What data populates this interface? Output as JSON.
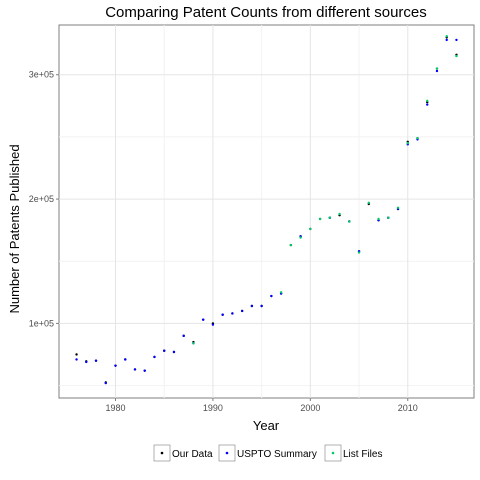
{
  "chart_data": {
    "type": "scatter",
    "title": "Comparing Patent Counts from different sources",
    "xlabel": "Year",
    "ylabel": "Number of Patents Published",
    "xlim": [
      1974.2,
      2016.8
    ],
    "ylim": [
      40000,
      340000
    ],
    "x_ticks": [
      1980,
      1990,
      2000,
      2010
    ],
    "x_tick_labels": [
      "1980",
      "1990",
      "2000",
      "2010"
    ],
    "y_ticks": [
      100000,
      200000,
      300000
    ],
    "y_tick_labels": [
      "1e+05",
      "2e+05",
      "3e+05"
    ],
    "grid": true,
    "legend_position": "bottom",
    "series": [
      {
        "name": "Our Data",
        "color": "#000000",
        "x": [
          1976,
          1977,
          1978,
          1979,
          1980,
          1981,
          1982,
          1983,
          1984,
          1985,
          1986,
          1987,
          1988,
          1989,
          1990,
          1991,
          1992,
          1993,
          1994,
          1995,
          1996,
          1997,
          1998,
          1999,
          2000,
          2001,
          2002,
          2003,
          2004,
          2005,
          2006,
          2007,
          2008,
          2009,
          2010,
          2011,
          2012,
          2013,
          2014,
          2015
        ],
        "y": [
          75000,
          69500,
          70000,
          52500,
          66000,
          71000,
          63000,
          62000,
          73000,
          78000,
          77000,
          90000,
          85000,
          103000,
          100000,
          107000,
          108000,
          110000,
          114000,
          114000,
          122000,
          124000,
          163000,
          170000,
          176000,
          184000,
          185000,
          187000,
          182000,
          158000,
          196000,
          183000,
          185000,
          192000,
          246000,
          249000,
          278000,
          305000,
          330000,
          316000
        ]
      },
      {
        "name": "USPTO Summary",
        "color": "#0000ff",
        "x": [
          1976,
          1977,
          1978,
          1979,
          1980,
          1981,
          1982,
          1983,
          1984,
          1985,
          1986,
          1987,
          1988,
          1989,
          1990,
          1991,
          1992,
          1993,
          1994,
          1995,
          1996,
          1997,
          1999,
          2002,
          2004,
          2005,
          2007,
          2008,
          2009,
          2010,
          2011,
          2012,
          2013,
          2014,
          2015
        ],
        "y": [
          71000,
          69000,
          70000,
          52000,
          66000,
          71000,
          63000,
          62000,
          73000,
          78000,
          77000,
          90000,
          84000,
          103000,
          99000,
          107000,
          108000,
          110000,
          114000,
          114000,
          122000,
          124000,
          170000,
          185000,
          182000,
          158000,
          183000,
          185000,
          192000,
          244000,
          248000,
          276000,
          303000,
          328000,
          328000
        ]
      },
      {
        "name": "List Files",
        "color": "#00cd66",
        "x": [
          1988,
          1997,
          1998,
          1999,
          2000,
          2001,
          2002,
          2003,
          2004,
          2005,
          2006,
          2007,
          2008,
          2009,
          2010,
          2011,
          2012,
          2013,
          2014,
          2015
        ],
        "y": [
          84000,
          125000,
          163000,
          169000,
          176000,
          184000,
          185000,
          188000,
          182000,
          157000,
          197000,
          184000,
          185000,
          193000,
          245000,
          249000,
          279000,
          305000,
          331000,
          315000
        ]
      }
    ]
  }
}
